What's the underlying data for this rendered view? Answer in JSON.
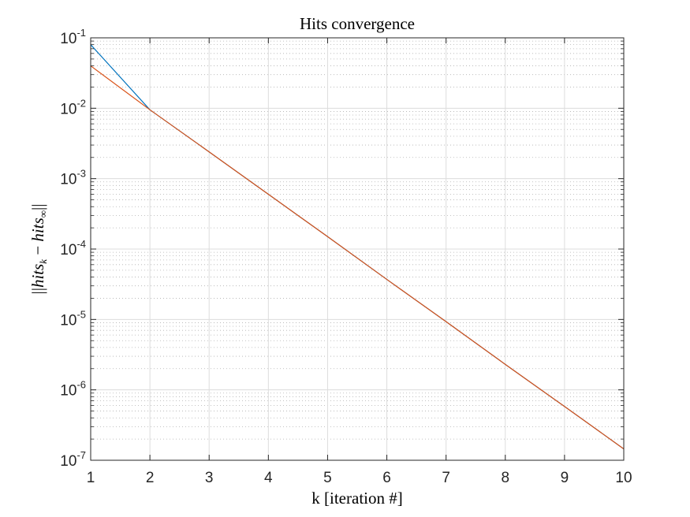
{
  "chart_data": {
    "type": "line",
    "title": "Hits convergence",
    "xlabel": "k [iteration #]",
    "ylabel": "||hits_k - hits_∞||",
    "ylabel_parts": {
      "open": "||",
      "base1": "hits",
      "sub1": "k",
      "minus": " − ",
      "base2": "hits",
      "sub2": "∞",
      "close": "||"
    },
    "x_scale": "linear",
    "y_scale": "log",
    "xlim": [
      1,
      10
    ],
    "ylim": [
      1e-07,
      0.1
    ],
    "x_ticks": [
      "1",
      "2",
      "3",
      "4",
      "5",
      "6",
      "7",
      "8",
      "9",
      "10"
    ],
    "y_ticks": [
      {
        "base": "10",
        "exp": "-7"
      },
      {
        "base": "10",
        "exp": "-6"
      },
      {
        "base": "10",
        "exp": "-5"
      },
      {
        "base": "10",
        "exp": "-4"
      },
      {
        "base": "10",
        "exp": "-3"
      },
      {
        "base": "10",
        "exp": "-2"
      },
      {
        "base": "10",
        "exp": "-1"
      }
    ],
    "grid": true,
    "minor_grid": true,
    "series": [
      {
        "color": "#0072BD",
        "x": [
          1,
          2,
          3,
          4,
          5,
          6,
          7,
          8,
          9,
          10
        ],
        "values": [
          0.08,
          0.0095,
          0.0024,
          0.0006,
          0.00015,
          3.7e-05,
          9.3e-06,
          2.3e-06,
          5.8e-07,
          1.45e-07
        ]
      },
      {
        "color": "#D95319",
        "x": [
          1,
          2,
          3,
          4,
          5,
          6,
          7,
          8,
          9,
          10
        ],
        "values": [
          0.04,
          0.0095,
          0.0024,
          0.0006,
          0.00015,
          3.7e-05,
          9.3e-06,
          2.3e-06,
          5.8e-07,
          1.45e-07
        ]
      }
    ]
  }
}
